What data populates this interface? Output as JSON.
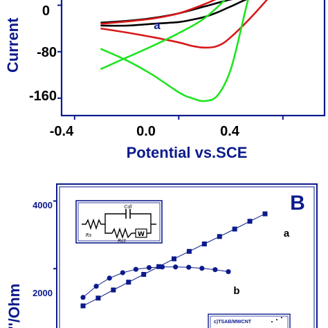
{
  "chart_data": [
    {
      "type": "line",
      "panel_label": "",
      "xlabel": "Potential vs.SCE",
      "ylabel": "Current",
      "xlim": [
        -0.45,
        0.56
      ],
      "ylim": [
        -190,
        15
      ],
      "x_ticks": [
        "-0.4",
        "0.0",
        "0.4"
      ],
      "y_ticks": [
        "0",
        "-80",
        "-160"
      ],
      "x_tick_values": [
        -0.4,
        0.0,
        0.4
      ],
      "y_tick_values": [
        0,
        -80,
        -160
      ],
      "annotations": [
        {
          "text": "a",
          "x": 0.06,
          "y": -26
        }
      ],
      "series": [
        {
          "color": "#000000",
          "x": [
            -0.3,
            -0.2,
            -0.1,
            0.0,
            0.1,
            0.2,
            0.3,
            0.4,
            0.45,
            0.4,
            0.3,
            0.2,
            0.15,
            0.1,
            0.05,
            0.0,
            -0.1,
            -0.2,
            -0.3
          ],
          "y": [
            -30,
            -27,
            -22,
            -14,
            -2,
            10,
            18,
            24,
            27,
            24,
            17,
            -2,
            -12,
            -20,
            -25,
            -29,
            -32,
            -35,
            -35
          ]
        },
        {
          "color": "#d81818",
          "x": [
            -0.3,
            -0.2,
            -0.1,
            0.0,
            0.1,
            0.15,
            0.2,
            0.25,
            0.3,
            0.35,
            0.4,
            0.3,
            0.2,
            0.15,
            0.1,
            0.05,
            0.0,
            -0.1,
            -0.2,
            -0.3
          ],
          "y": [
            -32,
            -28,
            -23,
            -14,
            2,
            12,
            22,
            35,
            38,
            41,
            44,
            -10,
            -55,
            -70,
            -73,
            -70,
            -64,
            -55,
            -47,
            -40
          ]
        },
        {
          "color": "#1ee41e",
          "x": [
            -0.3,
            -0.2,
            -0.1,
            0.0,
            0.1,
            0.2,
            0.25,
            0.3,
            0.25,
            0.2,
            0.15,
            0.1,
            0.05,
            0.0,
            -0.1,
            -0.2,
            -0.3
          ],
          "y": [
            -110,
            -90,
            -70,
            -48,
            -22,
            20,
            50,
            80,
            -20,
            -110,
            -155,
            -165,
            -160,
            -150,
            -120,
            -95,
            -75
          ]
        }
      ]
    },
    {
      "type": "scatter",
      "panel_label": "B",
      "xlabel": "",
      "ylabel": "Z''/Ohm",
      "ylim": [
        0,
        4500
      ],
      "y_ticks": [
        "4000",
        "2000"
      ],
      "y_tick_values": [
        4000,
        2000
      ],
      "series": [
        {
          "label": "a",
          "color": "#0b1a8c",
          "marker": "square",
          "x": [
            1,
            2,
            3,
            4,
            5,
            6,
            7,
            8,
            9,
            10,
            11,
            12,
            13
          ],
          "y": [
            900,
            1130,
            1370,
            1600,
            1830,
            2060,
            2290,
            2510,
            2730,
            2950,
            3170,
            3400,
            3620
          ]
        },
        {
          "label": "b",
          "color": "#0b1a8c",
          "marker": "circle",
          "x": [
            1,
            2,
            3,
            4,
            5,
            6,
            7,
            8,
            9,
            10,
            11,
            12
          ],
          "y": [
            1150,
            1480,
            1720,
            1880,
            1980,
            2030,
            2050,
            2050,
            2040,
            2010,
            1970,
            1910
          ]
        }
      ],
      "inset_equivalent_circuit": [
        "Cdl",
        "Rs",
        "Rct",
        "W"
      ],
      "legend_entries": [
        "c)TSAB/MWCNT"
      ]
    }
  ]
}
